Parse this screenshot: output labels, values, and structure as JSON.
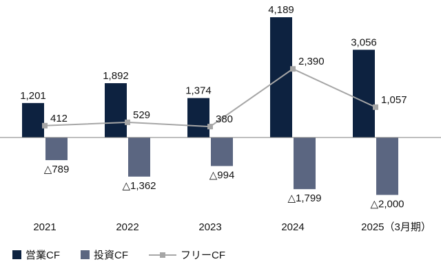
{
  "chart_data": {
    "type": "bar",
    "categories": [
      "2021",
      "2022",
      "2023",
      "2024",
      "2025（3月期）"
    ],
    "series": [
      {
        "name": "営業CF",
        "kind": "bar",
        "color": "#0d2240",
        "values": [
          1201,
          1892,
          1374,
          4189,
          3056
        ],
        "labels": [
          "1,201",
          "1,892",
          "1,374",
          "4,189",
          "3,056"
        ]
      },
      {
        "name": "投資CF",
        "kind": "bar",
        "color": "#5b6681",
        "values": [
          -789,
          -1362,
          -994,
          -1799,
          -2000
        ],
        "labels": [
          "△789",
          "△1,362",
          "△994",
          "△1,799",
          "△2,000"
        ]
      },
      {
        "name": "フリーCF",
        "kind": "line",
        "color": "#a6a6a6",
        "values": [
          412,
          529,
          380,
          2390,
          1057
        ],
        "labels": [
          "412",
          "529",
          "380",
          "2,390",
          "1,057"
        ]
      }
    ],
    "ylim": [
      -2300,
      4400
    ],
    "grid": false,
    "legend_position": "bottom-left"
  }
}
